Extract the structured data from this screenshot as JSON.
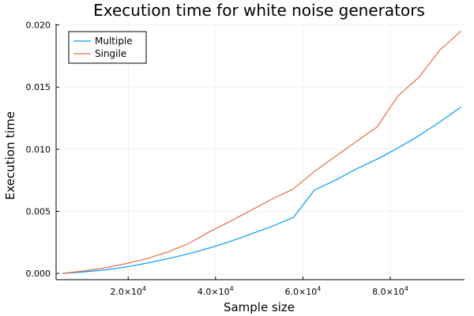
{
  "chart_data": {
    "type": "line",
    "title": "Execution time for white noise generators",
    "xlabel": "Sample size",
    "ylabel": "Execution time",
    "xlim": [
      3500,
      97000
    ],
    "ylim": [
      -0.0005,
      0.0201
    ],
    "x_ticks": [
      {
        "value": 20000,
        "mantissa": "2.0×10",
        "exp": "4"
      },
      {
        "value": 40000,
        "mantissa": "4.0×10",
        "exp": "4"
      },
      {
        "value": 60000,
        "mantissa": "6.0×10",
        "exp": "4"
      },
      {
        "value": 80000,
        "mantissa": "8.0×10",
        "exp": "4"
      }
    ],
    "y_ticks": [
      {
        "value": 0.0,
        "label": "0.000"
      },
      {
        "value": 0.005,
        "label": "0.005"
      },
      {
        "value": 0.01,
        "label": "0.010"
      },
      {
        "value": 0.015,
        "label": "0.015"
      },
      {
        "value": 0.02,
        "label": "0.020"
      }
    ],
    "grid": true,
    "legend_position": "top-left",
    "x": [
      5000,
      9800,
      14600,
      19400,
      24200,
      29000,
      33800,
      38600,
      43400,
      48200,
      53000,
      57800,
      62600,
      67400,
      72200,
      77000,
      81800,
      86600,
      91400,
      96200
    ],
    "series": [
      {
        "name": "Multiple",
        "color": "#009af9",
        "values": [
          0.0,
          0.00013,
          0.00028,
          0.00052,
          0.00082,
          0.00118,
          0.00158,
          0.00205,
          0.00258,
          0.00318,
          0.0038,
          0.0045,
          0.0067,
          0.0075,
          0.0084,
          0.0092,
          0.0101,
          0.0111,
          0.0122,
          0.0134
        ]
      },
      {
        "name": "Singile",
        "color": "#e26f46",
        "values": [
          0.0,
          0.0002,
          0.00045,
          0.00078,
          0.00118,
          0.00172,
          0.0024,
          0.00335,
          0.0042,
          0.0051,
          0.006,
          0.0068,
          0.0082,
          0.0094,
          0.0106,
          0.0118,
          0.0143,
          0.0158,
          0.018,
          0.0195
        ]
      }
    ]
  }
}
